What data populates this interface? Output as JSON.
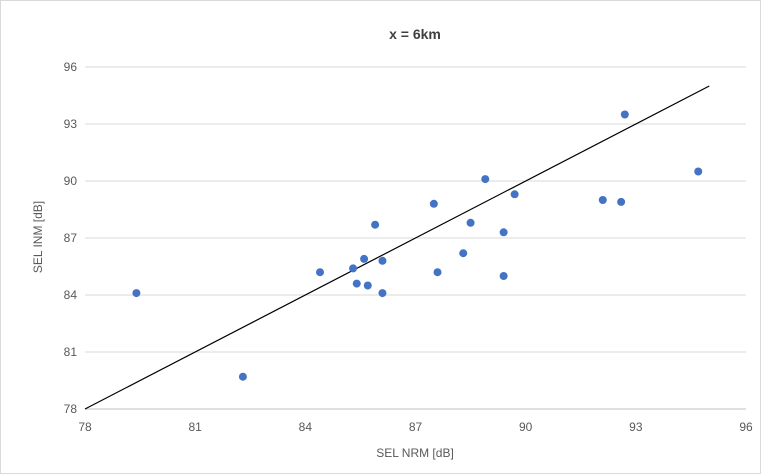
{
  "chart_data": {
    "type": "scatter",
    "title": "x = 6km",
    "xlabel": "SEL NRM [dB]",
    "ylabel": "SEL INM [dB]",
    "xlim": [
      78,
      96
    ],
    "ylim": [
      78,
      96
    ],
    "xticks": [
      78,
      81,
      84,
      87,
      90,
      93,
      96
    ],
    "yticks": [
      78,
      81,
      84,
      87,
      90,
      93,
      96
    ],
    "grid": "horizontal",
    "legend": "none",
    "point_color": "#4472c4",
    "line_color": "#000000",
    "reference_line": {
      "x": [
        78,
        95
      ],
      "y": [
        78,
        95
      ]
    },
    "points": [
      {
        "x": 79.4,
        "y": 84.1
      },
      {
        "x": 82.3,
        "y": 79.7
      },
      {
        "x": 84.4,
        "y": 85.2
      },
      {
        "x": 85.3,
        "y": 85.4
      },
      {
        "x": 85.4,
        "y": 84.6
      },
      {
        "x": 85.6,
        "y": 85.9
      },
      {
        "x": 85.7,
        "y": 84.5
      },
      {
        "x": 85.9,
        "y": 87.7
      },
      {
        "x": 86.1,
        "y": 85.8
      },
      {
        "x": 86.1,
        "y": 84.1
      },
      {
        "x": 87.5,
        "y": 88.8
      },
      {
        "x": 87.6,
        "y": 85.2
      },
      {
        "x": 88.3,
        "y": 86.2
      },
      {
        "x": 88.5,
        "y": 87.8
      },
      {
        "x": 88.9,
        "y": 90.1
      },
      {
        "x": 89.4,
        "y": 87.3
      },
      {
        "x": 89.4,
        "y": 85.0
      },
      {
        "x": 89.7,
        "y": 89.3
      },
      {
        "x": 92.1,
        "y": 89.0
      },
      {
        "x": 92.6,
        "y": 88.9
      },
      {
        "x": 92.7,
        "y": 93.5
      },
      {
        "x": 94.7,
        "y": 90.5
      }
    ]
  }
}
